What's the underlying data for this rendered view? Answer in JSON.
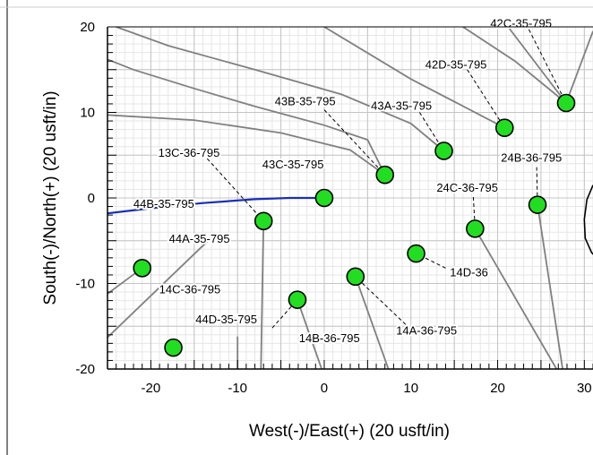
{
  "chart_data": {
    "type": "scatter",
    "title": "",
    "xlabel": "West(-)/East(+) (20 usft/in)",
    "ylabel": "South(-)/North(+) (20 usft/in)",
    "xlim": [
      -25,
      31
    ],
    "ylim": [
      -20,
      20
    ],
    "x_ticks": [
      -20,
      -10,
      0,
      10,
      20,
      30
    ],
    "y_ticks": [
      -20,
      -10,
      0,
      10,
      20
    ],
    "x_tick_labels": [
      "-20",
      "-10",
      "0",
      "10",
      "20",
      "30"
    ],
    "y_tick_labels": [
      "-20",
      "-10",
      "0",
      "10",
      "20"
    ],
    "grid": true,
    "marker_color": "#22dd22",
    "active_path_color": "#1a2fb5",
    "offset_path_color": "#808080",
    "wells": [
      {
        "name": "42C-35-795",
        "x": 27.9,
        "y": 11.1,
        "lx": 22.7,
        "ly": 20.3
      },
      {
        "name": "42D-35-795",
        "x": 20.8,
        "y": 8.2,
        "lx": 15.2,
        "ly": 15.5
      },
      {
        "name": "43B-35-795",
        "x": 7.0,
        "y": 2.7,
        "lx": -2.2,
        "ly": 11.2
      },
      {
        "name": "43A-35-795",
        "x": 13.8,
        "y": 5.5,
        "lx": 8.9,
        "ly": 10.7
      },
      {
        "name": "43C-35-795",
        "x": 0.0,
        "y": 0.0,
        "lx": -3.6,
        "ly": 3.8
      },
      {
        "name": "13C-36-795",
        "x": -7.0,
        "y": -2.7,
        "lx": -15.6,
        "ly": 5.2
      },
      {
        "name": "24B-36-795",
        "x": 24.6,
        "y": -0.8,
        "lx": 23.9,
        "ly": 4.6
      },
      {
        "name": "24C-36-795",
        "x": 17.4,
        "y": -3.6,
        "lx": 16.5,
        "ly": 1.1
      },
      {
        "name": "44B-35-795",
        "x": -7.0,
        "y": -2.7,
        "lx": -18.5,
        "ly": -0.8
      },
      {
        "name": "44A-35-795",
        "x": -21.0,
        "y": -8.2,
        "lx": -14.4,
        "ly": -4.9
      },
      {
        "name": "14D-36",
        "x": 10.6,
        "y": -6.5,
        "lx": 16.7,
        "ly": -8.8
      },
      {
        "name": "14C-36-795",
        "x": -17.4,
        "y": -17.5,
        "lx": -15.5,
        "ly": -10.8
      },
      {
        "name": "44D-35-795",
        "x": -3.1,
        "y": -11.9,
        "lx": -11.3,
        "ly": -14.3
      },
      {
        "name": "14B-36-795",
        "x": 3.6,
        "y": -9.2,
        "lx": 0.6,
        "ly": -16.5
      },
      {
        "name": "14A-36-795",
        "x": 3.6,
        "y": -9.2,
        "lx": 11.8,
        "ly": -15.6
      }
    ],
    "offset_paths": [
      [
        [
          -25,
          16.2
        ],
        [
          -22,
          15.0
        ],
        [
          -15,
          12.8
        ],
        [
          -8,
          10.7
        ],
        [
          0,
          8.5
        ],
        [
          5,
          6.8
        ],
        [
          7,
          2.7
        ]
      ],
      [
        [
          -25,
          9.7
        ],
        [
          -15,
          9.1
        ],
        [
          -5,
          7.6
        ],
        [
          3,
          5.6
        ],
        [
          7,
          2.7
        ]
      ],
      [
        [
          -24,
          20
        ],
        [
          -18,
          17.8
        ],
        [
          -8,
          15.0
        ],
        [
          2,
          12.1
        ],
        [
          10,
          8.7
        ],
        [
          13.8,
          5.5
        ]
      ],
      [
        [
          0,
          20
        ],
        [
          10,
          13.9
        ],
        [
          20.8,
          8.2
        ]
      ],
      [
        [
          16,
          20
        ],
        [
          22,
          16.0
        ],
        [
          27.9,
          11.1
        ]
      ],
      [
        [
          21.2,
          20
        ],
        [
          27.9,
          11.1
        ]
      ],
      [
        [
          27.9,
          11.1
        ],
        [
          31,
          19.5
        ]
      ],
      [
        [
          -25,
          -11.2
        ],
        [
          -21.0,
          -8.2
        ]
      ],
      [
        [
          -25,
          -16.3
        ],
        [
          -13.5,
          -5.1
        ]
      ],
      [
        [
          -7.0,
          -2.7
        ],
        [
          -7.3,
          -20
        ]
      ],
      [
        [
          -10.0,
          -16.2
        ],
        [
          -10.0,
          -20
        ]
      ],
      [
        [
          -3.1,
          -11.9
        ],
        [
          -0.3,
          -20
        ]
      ],
      [
        [
          3.6,
          -9.2
        ],
        [
          7.4,
          -20
        ]
      ],
      [
        [
          17.4,
          -3.6
        ],
        [
          26.8,
          -20
        ]
      ],
      [
        [
          24.6,
          -0.8
        ],
        [
          27.5,
          -20
        ]
      ]
    ],
    "active_path": [
      [
        -25,
        -1.8
      ],
      [
        -20,
        -1.2
      ],
      [
        -14,
        -0.6
      ],
      [
        -8,
        -0.15
      ],
      [
        -4,
        0.0
      ],
      [
        0,
        0.0
      ]
    ],
    "right_edge_curve": [
      [
        31,
        1.5
      ],
      [
        30.3,
        -0.2
      ],
      [
        30.0,
        -2.5
      ],
      [
        30.1,
        -4.7
      ],
      [
        30.8,
        -6.3
      ],
      [
        31,
        -6.6
      ]
    ],
    "label_leaders": [
      [
        [
          23.6,
          19.7
        ],
        [
          27.9,
          11.1
        ]
      ],
      [
        [
          16.5,
          15.0
        ],
        [
          20.8,
          8.2
        ]
      ],
      [
        [
          0.0,
          10.3
        ],
        [
          7.0,
          2.7
        ]
      ],
      [
        [
          11.0,
          10.0
        ],
        [
          13.8,
          5.5
        ]
      ],
      [
        [
          -13.5,
          4.6
        ],
        [
          -7.0,
          -2.7
        ]
      ],
      [
        [
          24.5,
          3.6
        ],
        [
          24.6,
          -0.8
        ]
      ],
      [
        [
          17.2,
          0.1
        ],
        [
          17.4,
          -3.6
        ]
      ],
      [
        [
          14.0,
          -8.2
        ],
        [
          10.6,
          -6.5
        ]
      ],
      [
        [
          -6.0,
          -15.2
        ],
        [
          -3.1,
          -11.9
        ]
      ],
      [
        [
          9.4,
          -14.8
        ],
        [
          3.6,
          -9.2
        ]
      ]
    ]
  }
}
